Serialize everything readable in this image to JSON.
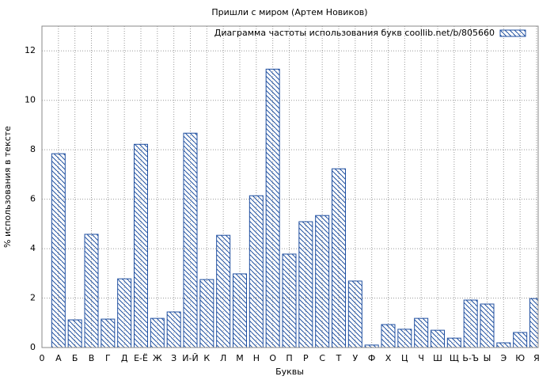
{
  "chart_data": {
    "type": "bar",
    "title": "Пришли с миром (Артем Новиков)",
    "x_label": "Буквы",
    "y_label": "% использования в тексте",
    "categories": [
      "0",
      "А",
      "Б",
      "В",
      "Г",
      "Д",
      "Е-Ё",
      "Ж",
      "З",
      "И-Й",
      "К",
      "Л",
      "М",
      "Н",
      "О",
      "П",
      "Р",
      "С",
      "Т",
      "У",
      "Ф",
      "Х",
      "Ц",
      "Ч",
      "Ш",
      "Щ",
      "Ь-Ъ",
      "Ы",
      "Э",
      "Ю",
      "Я"
    ],
    "series": [
      {
        "name": "Диаграмма частоты использования букв coollib.net/b/805660",
        "color": "#1f4fa0",
        "values": [
          null,
          7.84,
          1.12,
          4.58,
          1.15,
          2.78,
          8.22,
          1.18,
          1.44,
          8.67,
          2.75,
          4.54,
          2.98,
          6.14,
          11.26,
          3.78,
          5.09,
          5.34,
          7.23,
          2.69,
          0.1,
          0.93,
          0.74,
          1.18,
          0.7,
          0.38,
          1.92,
          1.76,
          0.19,
          0.61,
          1.98
        ]
      }
    ],
    "ylim": [
      0,
      13
    ],
    "yticks": [
      0,
      2,
      4,
      6,
      8,
      10,
      12
    ],
    "grid": true,
    "legend": "top-right"
  }
}
